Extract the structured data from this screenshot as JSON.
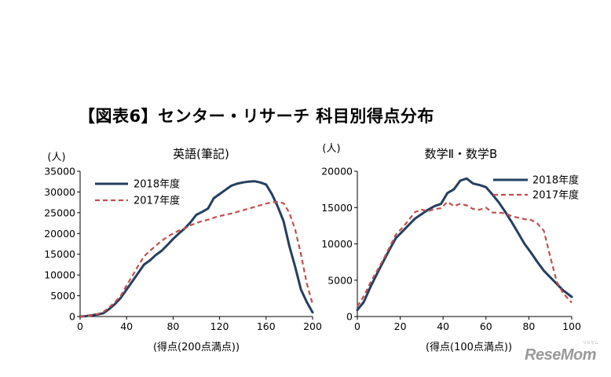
{
  "page": {
    "title": "【図表6】センター・リサーチ 科目別得点分布",
    "watermark": "ReseMom",
    "watermark_kana": "リセマム"
  },
  "chart_data": [
    {
      "type": "line",
      "title": "英語(筆記)",
      "ylabel": "(人)",
      "xlabel": "(得点(200点満点))",
      "xlim": [
        0,
        200
      ],
      "ylim": [
        0,
        35000
      ],
      "xticks": [
        0,
        40,
        80,
        120,
        160,
        200
      ],
      "yticks": [
        0,
        5000,
        10000,
        15000,
        20000,
        25000,
        30000,
        35000
      ],
      "legend_position": "top-left",
      "grid": false,
      "series": [
        {
          "name": "2018年度",
          "color": "#243f60",
          "style": "solid",
          "x": [
            0,
            5,
            10,
            15,
            20,
            25,
            30,
            35,
            40,
            45,
            50,
            55,
            60,
            65,
            70,
            75,
            80,
            85,
            90,
            95,
            100,
            105,
            110,
            115,
            120,
            125,
            130,
            135,
            140,
            145,
            150,
            155,
            160,
            165,
            170,
            175,
            180,
            185,
            190,
            195,
            200
          ],
          "y": [
            0,
            100,
            300,
            500,
            800,
            1800,
            3000,
            4500,
            6500,
            8500,
            10500,
            12500,
            13500,
            14800,
            15800,
            17200,
            18700,
            20000,
            21200,
            22700,
            24500,
            25200,
            26000,
            28500,
            29500,
            30500,
            31500,
            32000,
            32300,
            32500,
            32600,
            32300,
            31800,
            29500,
            26500,
            23000,
            17000,
            12000,
            6500,
            3500,
            1000
          ]
        },
        {
          "name": "2017年度",
          "color": "#c0504d",
          "style": "dashed",
          "x": [
            0,
            5,
            10,
            15,
            20,
            25,
            30,
            35,
            40,
            45,
            50,
            55,
            60,
            65,
            70,
            75,
            80,
            85,
            90,
            95,
            100,
            105,
            110,
            115,
            120,
            125,
            130,
            135,
            140,
            145,
            150,
            155,
            160,
            165,
            170,
            175,
            180,
            185,
            190,
            195,
            200
          ],
          "y": [
            0,
            100,
            300,
            600,
            1100,
            2200,
            3500,
            5000,
            7500,
            9800,
            12200,
            14500,
            15800,
            17000,
            18200,
            19200,
            20000,
            20700,
            21200,
            22000,
            22500,
            23000,
            23300,
            23800,
            24200,
            24500,
            24800,
            25200,
            25600,
            26000,
            26400,
            26800,
            27200,
            27500,
            27600,
            27300,
            25000,
            21000,
            15000,
            8000,
            3000
          ]
        }
      ]
    },
    {
      "type": "line",
      "title": "数学Ⅱ・数学B",
      "ylabel": "(人)",
      "xlabel": "(得点(100点満点))",
      "xlim": [
        0,
        100
      ],
      "ylim": [
        0,
        20000
      ],
      "xticks": [
        0,
        20,
        40,
        60,
        80,
        100
      ],
      "yticks": [
        0,
        5000,
        10000,
        15000,
        20000
      ],
      "legend_position": "top-right",
      "grid": false,
      "series": [
        {
          "name": "2018年度",
          "color": "#243f60",
          "style": "solid",
          "x": [
            0,
            3,
            6,
            9,
            12,
            15,
            18,
            21,
            24,
            27,
            30,
            33,
            36,
            39,
            42,
            45,
            48,
            51,
            54,
            57,
            60,
            63,
            66,
            69,
            72,
            75,
            78,
            81,
            84,
            87,
            90,
            93,
            96,
            100
          ],
          "y": [
            900,
            2000,
            4000,
            5800,
            7500,
            9200,
            10800,
            11700,
            12600,
            13500,
            14100,
            14700,
            15200,
            15500,
            17000,
            17500,
            18700,
            19000,
            18300,
            18100,
            17800,
            16800,
            15700,
            14400,
            13000,
            11500,
            10000,
            8800,
            7500,
            6300,
            5400,
            4500,
            3600,
            2700
          ]
        },
        {
          "name": "2017年度",
          "color": "#c0504d",
          "style": "dashed",
          "x": [
            0,
            3,
            6,
            9,
            12,
            15,
            18,
            21,
            24,
            27,
            30,
            33,
            36,
            39,
            42,
            45,
            48,
            51,
            54,
            57,
            60,
            63,
            66,
            69,
            72,
            75,
            78,
            81,
            84,
            87,
            90,
            93,
            96,
            100
          ],
          "y": [
            1400,
            2800,
            4600,
            6200,
            7800,
            9500,
            11300,
            12200,
            13300,
            14400,
            14700,
            14500,
            14800,
            14900,
            15800,
            15200,
            15500,
            15300,
            14800,
            14700,
            15000,
            14300,
            14300,
            14200,
            13800,
            13600,
            13400,
            13300,
            12800,
            11800,
            8200,
            4800,
            3200,
            1900
          ]
        }
      ]
    }
  ]
}
